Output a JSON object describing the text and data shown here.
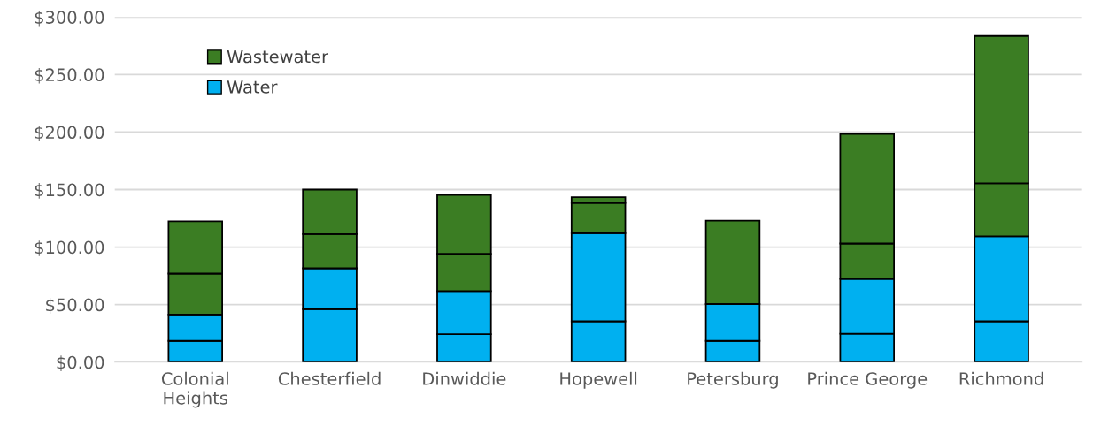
{
  "chart_data": {
    "type": "bar",
    "stacked": true,
    "categories": [
      "Colonial\nHeights",
      "Chesterfield",
      "Dinwiddie",
      "Hopewell",
      "Petersburg",
      "Prince George",
      "Richmond"
    ],
    "series": [
      {
        "name": "Water",
        "color": "#00b0f0",
        "values": [
          18.4,
          46,
          24.2,
          35.5,
          18.4,
          24.6,
          35.5
        ]
      },
      {
        "color": "#00b0f0",
        "values": [
          23,
          35.6,
          37.5,
          76.6,
          32.1,
          47.7,
          73.8
        ]
      },
      {
        "name": "Wastewater",
        "color": "#3b7d23",
        "values": [
          35.6,
          29.7,
          32.5,
          26.2,
          72.5,
          30.8,
          46.2
        ]
      },
      {
        "color": "#3b7d23",
        "values": [
          45.4,
          38.7,
          51.2,
          5.0,
          null,
          95.3,
          128
        ]
      }
    ],
    "ylim": [
      0,
      300
    ],
    "yticks": [
      {
        "value": 0,
        "label": "$0.00"
      },
      {
        "value": 50,
        "label": "$50.00"
      },
      {
        "value": 100,
        "label": "$100.00"
      },
      {
        "value": 150,
        "label": "$150.00"
      },
      {
        "value": 200,
        "label": "$200.00"
      },
      {
        "value": 250,
        "label": "$250.00"
      },
      {
        "value": 300,
        "label": "$300.00"
      }
    ],
    "grid": "y",
    "legend": "top left"
  }
}
